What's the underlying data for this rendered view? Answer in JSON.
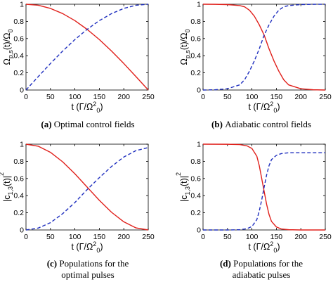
{
  "chart_data": [
    {
      "type": "line",
      "panel": "a",
      "caption": {
        "letter": "(a)",
        "lines": [
          "Optimal control fields"
        ]
      },
      "xlabel": "t (Γ/Ω",
      "xlabel_sup": "2",
      "xlabel_sub": "0",
      "xlabel_end": ")",
      "ylabel": "Ω",
      "ylabel_sub": "p,s",
      "ylabel_end": "(t)/Ω",
      "ylabel_sub2": "0",
      "xlim": [
        0,
        250
      ],
      "ylim": [
        0,
        1
      ],
      "xticks": [
        "0",
        "50",
        "100",
        "150",
        "200",
        "250"
      ],
      "yticks": [
        "0",
        "0.2",
        "0.4",
        "0.6",
        "0.8",
        "1"
      ],
      "series": [
        {
          "color": "#e0201b",
          "dash": "solid",
          "x": [
            0,
            25,
            50,
            75,
            100,
            125,
            150,
            175,
            200,
            225,
            250
          ],
          "y": [
            1.0,
            0.988,
            0.951,
            0.891,
            0.809,
            0.707,
            0.588,
            0.454,
            0.309,
            0.156,
            0.0
          ]
        },
        {
          "color": "#1f2fbf",
          "dash": "dashed",
          "x": [
            0,
            25,
            50,
            75,
            100,
            125,
            150,
            175,
            200,
            225,
            250
          ],
          "y": [
            0.0,
            0.156,
            0.309,
            0.454,
            0.588,
            0.707,
            0.809,
            0.891,
            0.951,
            0.988,
            1.0
          ]
        }
      ]
    },
    {
      "type": "line",
      "panel": "b",
      "caption": {
        "letter": "(b)",
        "lines": [
          "Adiabatic control fields"
        ]
      },
      "xlabel": "t (Γ/Ω",
      "xlabel_sup": "2",
      "xlabel_sub": "0",
      "xlabel_end": ")",
      "ylabel": "Ω",
      "ylabel_sub": "p,s",
      "ylabel_end": "(t)/Ω",
      "ylabel_sub2": "0",
      "xlim": [
        0,
        250
      ],
      "ylim": [
        0,
        1
      ],
      "xticks": [
        "0",
        "50",
        "100",
        "150",
        "200",
        "250"
      ],
      "yticks": [
        "0",
        "0.2",
        "0.4",
        "0.6",
        "0.8",
        "1"
      ],
      "series": [
        {
          "color": "#e0201b",
          "dash": "solid",
          "x": [
            0,
            25,
            50,
            75,
            85,
            95,
            105,
            115,
            125,
            135,
            145,
            155,
            165,
            175,
            200,
            225,
            250
          ],
          "y": [
            1.0,
            0.999,
            0.996,
            0.984,
            0.97,
            0.93,
            0.86,
            0.76,
            0.64,
            0.48,
            0.34,
            0.22,
            0.12,
            0.06,
            0.015,
            0.003,
            0.0
          ]
        },
        {
          "color": "#1f2fbf",
          "dash": "dashed",
          "x": [
            0,
            25,
            50,
            75,
            85,
            95,
            105,
            115,
            125,
            135,
            145,
            155,
            165,
            175,
            200,
            225,
            250
          ],
          "y": [
            0.0,
            0.003,
            0.015,
            0.06,
            0.12,
            0.22,
            0.34,
            0.48,
            0.64,
            0.76,
            0.86,
            0.93,
            0.97,
            0.984,
            0.996,
            0.999,
            1.0
          ]
        }
      ]
    },
    {
      "type": "line",
      "panel": "c",
      "caption": {
        "letter": "(c)",
        "lines": [
          "Populations for the",
          "optimal pulses"
        ]
      },
      "xlabel": "t (Γ/Ω",
      "xlabel_sup": "2",
      "xlabel_sub": "0",
      "xlabel_end": ")",
      "ylabel": "|c",
      "ylabel_sub": "1,3",
      "ylabel_end": "(t)|",
      "ylabel_sup": "2",
      "xlim": [
        0,
        250
      ],
      "ylim": [
        0,
        1
      ],
      "xticks": [
        "0",
        "50",
        "100",
        "150",
        "200",
        "250"
      ],
      "yticks": [
        "0",
        "0.2",
        "0.4",
        "0.6",
        "0.8",
        "1"
      ],
      "series": [
        {
          "color": "#e0201b",
          "dash": "solid",
          "x": [
            0,
            25,
            50,
            75,
            100,
            125,
            150,
            175,
            200,
            225,
            250
          ],
          "y": [
            1.0,
            0.976,
            0.905,
            0.794,
            0.655,
            0.5,
            0.345,
            0.206,
            0.095,
            0.024,
            0.0
          ]
        },
        {
          "color": "#1f2fbf",
          "dash": "dashed",
          "x": [
            0,
            25,
            50,
            75,
            100,
            125,
            150,
            175,
            200,
            225,
            250
          ],
          "y": [
            0.0,
            0.022,
            0.085,
            0.19,
            0.32,
            0.47,
            0.61,
            0.74,
            0.85,
            0.925,
            0.96
          ]
        }
      ]
    },
    {
      "type": "line",
      "panel": "d",
      "caption": {
        "letter": "(d)",
        "lines": [
          "Populations for the",
          "adiabatic pulses"
        ]
      },
      "xlabel": "t (Γ/Ω",
      "xlabel_sup": "2",
      "xlabel_sub": "0",
      "xlabel_end": ")",
      "ylabel": "|c",
      "ylabel_sub": "1,3",
      "ylabel_end": "(t)|",
      "ylabel_sup": "2",
      "xlim": [
        0,
        250
      ],
      "ylim": [
        0,
        1
      ],
      "xticks": [
        "0",
        "50",
        "100",
        "150",
        "200",
        "250"
      ],
      "yticks": [
        "0",
        "0.2",
        "0.4",
        "0.6",
        "0.8",
        "1"
      ],
      "series": [
        {
          "color": "#e0201b",
          "dash": "solid",
          "x": [
            0,
            50,
            75,
            90,
            100,
            110,
            115,
            120,
            125,
            130,
            135,
            140,
            150,
            160,
            175,
            200,
            250
          ],
          "y": [
            1.0,
            0.999,
            0.995,
            0.98,
            0.95,
            0.86,
            0.75,
            0.6,
            0.45,
            0.3,
            0.18,
            0.1,
            0.035,
            0.012,
            0.003,
            0.0,
            0.0
          ]
        },
        {
          "color": "#1f2fbf",
          "dash": "dashed",
          "x": [
            0,
            50,
            75,
            90,
            100,
            110,
            115,
            120,
            125,
            130,
            135,
            140,
            150,
            160,
            175,
            200,
            250
          ],
          "y": [
            0.0,
            0.0,
            0.003,
            0.015,
            0.04,
            0.12,
            0.22,
            0.35,
            0.5,
            0.64,
            0.75,
            0.82,
            0.87,
            0.89,
            0.9,
            0.9,
            0.9
          ]
        }
      ]
    }
  ]
}
